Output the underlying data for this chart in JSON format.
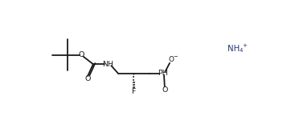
{
  "bg_color": "#ffffff",
  "line_color": "#1a1a1a",
  "text_color": "#1a1a1a",
  "nh4_color": "#1e3a6e",
  "line_width": 1.3,
  "figsize": [
    3.52,
    1.55
  ],
  "dpi": 100,
  "fs": 6.8,
  "xlim": [
    0,
    10
  ],
  "ylim": [
    0,
    4.4
  ]
}
